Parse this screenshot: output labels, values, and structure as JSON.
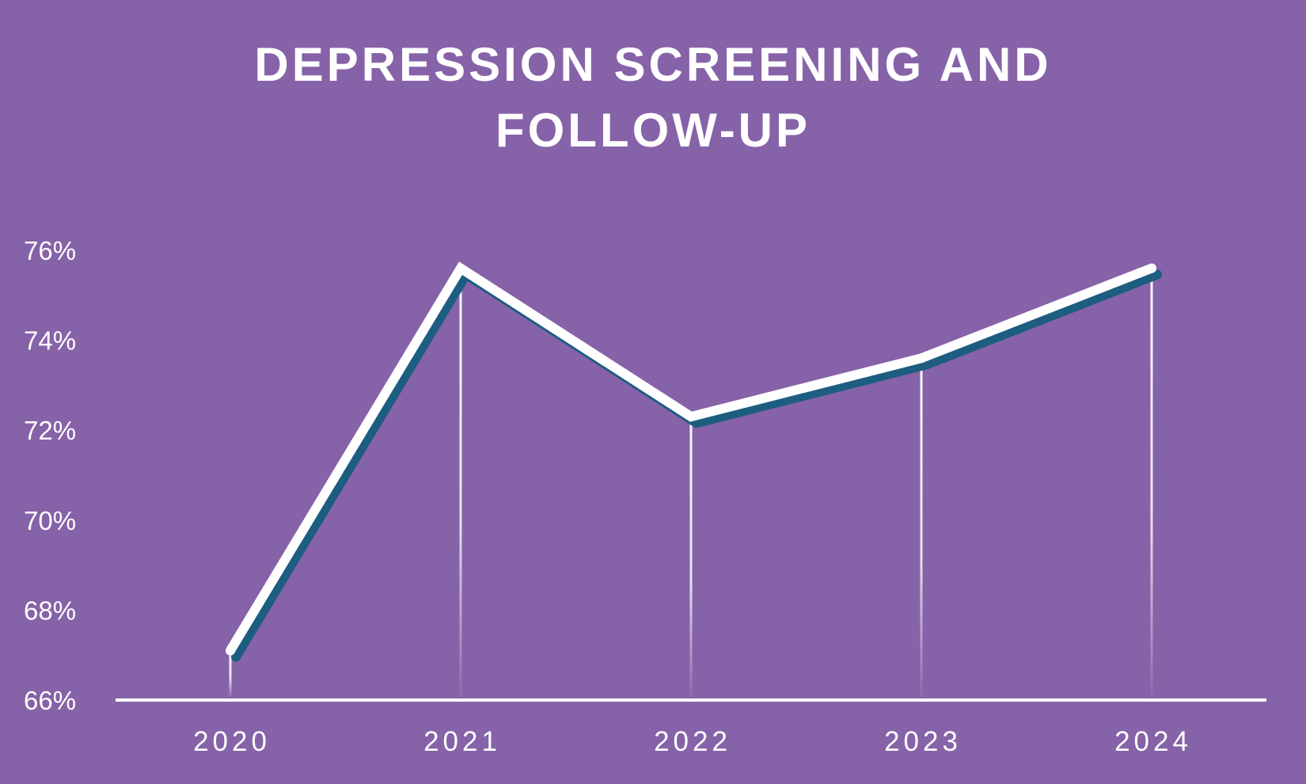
{
  "chart_data": {
    "type": "line",
    "title_lines": [
      "DEPRESSION SCREENING AND",
      "FOLLOW-UP"
    ],
    "xlabel": "",
    "ylabel": "",
    "categories": [
      "2020",
      "2021",
      "2022",
      "2023",
      "2024"
    ],
    "series": [
      {
        "values": [
          67.1,
          75.6,
          72.3,
          73.6,
          75.6
        ]
      }
    ],
    "ylim": [
      66,
      76
    ],
    "yticks": [
      66,
      68,
      70,
      72,
      74,
      76
    ],
    "ytick_labels": [
      "66%",
      "68%",
      "70%",
      "72%",
      "74%",
      "76%"
    ],
    "grid": "vertical drop lines from each point to the x-axis",
    "legend": "none",
    "colors": {
      "background": "#8662a8",
      "line": "#ffffff",
      "line_shadow": "#1c5d80",
      "text": "#ffffff",
      "axis": "#ffffff"
    }
  }
}
